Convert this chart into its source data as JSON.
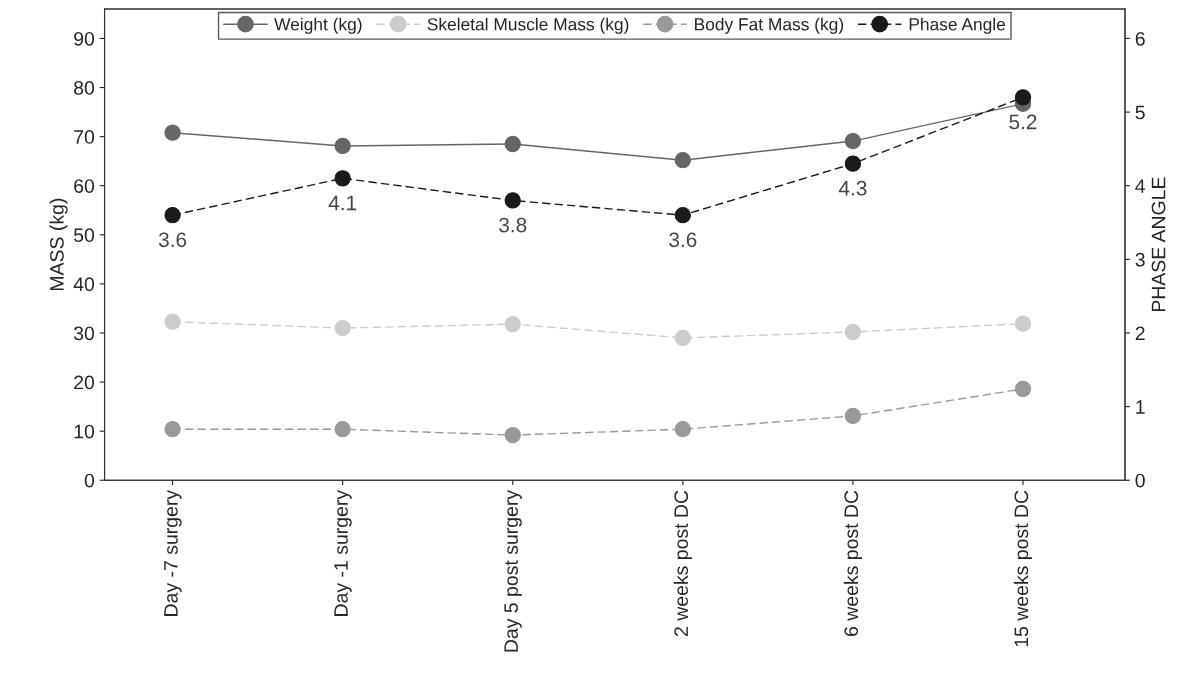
{
  "chart_data": {
    "type": "line",
    "xlabel": null,
    "ylabel": "MASS (kg)",
    "y2label": "PHASE ANGLE",
    "categories": [
      "Day -7 surgery",
      "Day -1 surgery",
      "Day 5 post surgery",
      "2 weeks post DC",
      "6 weeks post DC",
      "15 weeks post DC"
    ],
    "series": [
      {
        "name": "Weight (kg)",
        "color": "#666666",
        "line_style": "solid",
        "values": [
          70.8,
          68.1,
          68.5,
          65.2,
          69.1,
          76.7
        ]
      },
      {
        "name": "Skeletal Muscle Mass (kg)",
        "color": "#cccccc",
        "line_style": "dashed",
        "values": [
          32.3,
          31.0,
          31.8,
          29.0,
          30.2,
          31.9
        ]
      },
      {
        "name": "Body Fat Mass (kg)",
        "color": "#999999",
        "line_style": "dashed",
        "values": [
          10.4,
          10.4,
          9.2,
          10.4,
          13.1,
          18.6
        ]
      },
      {
        "name": "Phase Angle",
        "color": "#1a1a1a",
        "line_style": "dashed",
        "axis": "y2",
        "data_labels": true,
        "values": [
          3.6,
          4.1,
          3.8,
          3.6,
          4.3,
          5.2
        ]
      }
    ],
    "ylim": [
      0,
      96
    ],
    "yticks": [
      0,
      10,
      20,
      30,
      40,
      50,
      60,
      70,
      80,
      90
    ],
    "y2lim": [
      0,
      6.4
    ],
    "y2ticks": [
      0,
      1,
      2,
      3,
      4,
      5,
      6
    ],
    "marker": "circle",
    "grid": false,
    "legend": "top"
  }
}
